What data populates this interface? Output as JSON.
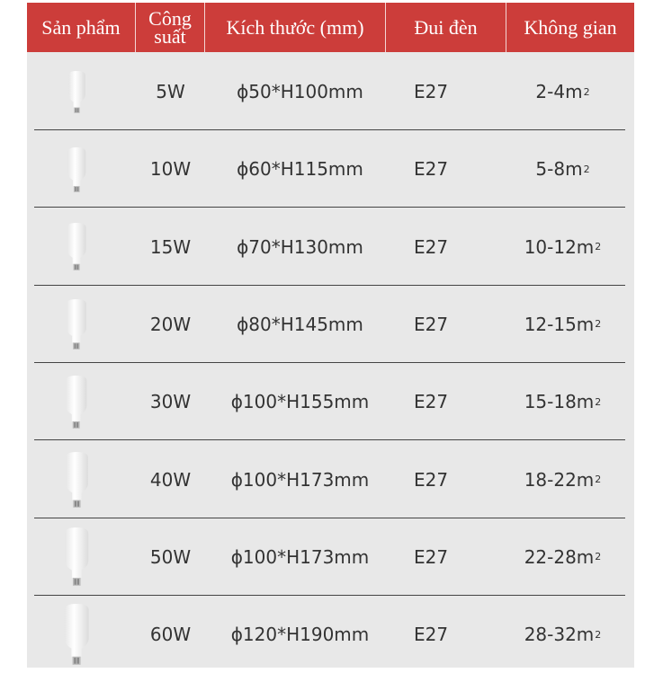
{
  "header": [
    "Sản phẩm",
    "Công suất",
    "Kích thước (mm)",
    "Đui đèn",
    "Không gian"
  ],
  "rows": [
    {
      "icon": "bulb-icon",
      "power": "5W",
      "size": "ϕ50*H100mm",
      "socket": "E27",
      "space": "2-4m",
      "unit_sup": "2"
    },
    {
      "icon": "bulb-icon",
      "power": "10W",
      "size": "ϕ60*H115mm",
      "socket": "E27",
      "space": "5-8m",
      "unit_sup": "2"
    },
    {
      "icon": "bulb-icon",
      "power": "15W",
      "size": "ϕ70*H130mm",
      "socket": "E27",
      "space": "10-12m",
      "unit_sup": "2"
    },
    {
      "icon": "bulb-icon",
      "power": "20W",
      "size": "ϕ80*H145mm",
      "socket": "E27",
      "space": "12-15m",
      "unit_sup": "2"
    },
    {
      "icon": "bulb-icon",
      "power": "30W",
      "size": "ϕ100*H155mm",
      "socket": "E27",
      "space": "15-18m",
      "unit_sup": "2"
    },
    {
      "icon": "bulb-icon",
      "power": "40W",
      "size": "ϕ100*H173mm",
      "socket": "E27",
      "space": "18-22m",
      "unit_sup": "2"
    },
    {
      "icon": "bulb-icon",
      "power": "50W",
      "size": "ϕ100*H173mm",
      "socket": "E27",
      "space": "22-28m",
      "unit_sup": "2"
    },
    {
      "icon": "bulb-icon",
      "power": "60W",
      "size": "ϕ120*H190mm",
      "socket": "E27",
      "space": "28-32m",
      "unit_sup": "2"
    }
  ],
  "colors": {
    "header_bg": "#cc3d3a",
    "body_bg": "#e8e8e8"
  }
}
